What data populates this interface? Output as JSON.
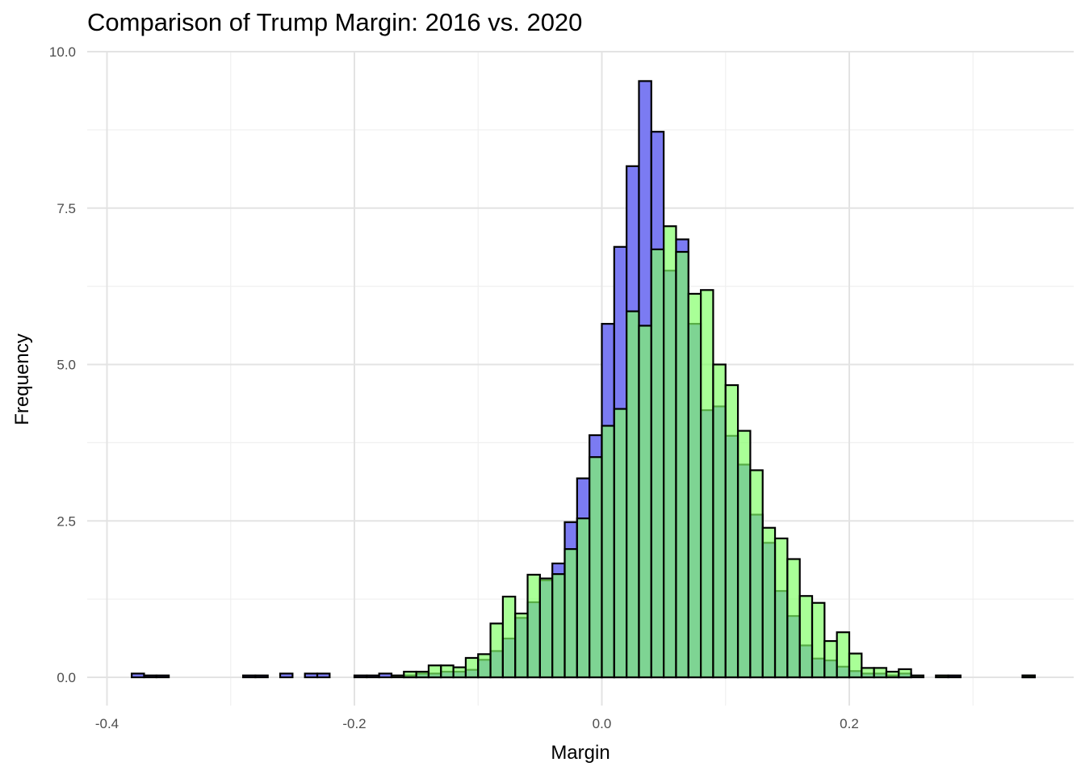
{
  "chart_data": {
    "type": "bar",
    "title": "Comparison of Trump Margin: 2016 vs. 2020",
    "xlabel": "Margin",
    "ylabel": "Frequency",
    "xlim": [
      -0.4,
      0.35
    ],
    "ylim": [
      0,
      10
    ],
    "x_ticks": [
      "-0.4",
      "-0.2",
      "0.0",
      "0.2"
    ],
    "x_tick_values": [
      -0.4,
      -0.2,
      0.0,
      0.2
    ],
    "y_ticks": [
      "0.0",
      "2.5",
      "5.0",
      "7.5",
      "10.0"
    ],
    "y_tick_values": [
      0,
      2.5,
      5.0,
      7.5,
      10.0
    ],
    "bin_width": 0.01,
    "grid": true,
    "legend": "none",
    "series": [
      {
        "color": "#7b7bf2",
        "bins": [
          {
            "x": -0.375,
            "y": 0.06
          },
          {
            "x": -0.365,
            "y": 0.03
          },
          {
            "x": -0.355,
            "y": 0.03
          },
          {
            "x": -0.285,
            "y": 0.03
          },
          {
            "x": -0.275,
            "y": 0.03
          },
          {
            "x": -0.255,
            "y": 0.06
          },
          {
            "x": -0.235,
            "y": 0.06
          },
          {
            "x": -0.225,
            "y": 0.06
          },
          {
            "x": -0.195,
            "y": 0.03
          },
          {
            "x": -0.185,
            "y": 0.03
          },
          {
            "x": -0.175,
            "y": 0.06
          },
          {
            "x": -0.155,
            "y": 0.03
          },
          {
            "x": -0.145,
            "y": 0.06
          },
          {
            "x": -0.135,
            "y": 0.06
          },
          {
            "x": -0.125,
            "y": 0.09
          },
          {
            "x": -0.115,
            "y": 0.09
          },
          {
            "x": -0.105,
            "y": 0.12
          },
          {
            "x": -0.095,
            "y": 0.28
          },
          {
            "x": -0.085,
            "y": 0.42
          },
          {
            "x": -0.075,
            "y": 0.62
          },
          {
            "x": -0.065,
            "y": 0.95
          },
          {
            "x": -0.055,
            "y": 1.2
          },
          {
            "x": -0.045,
            "y": 1.55
          },
          {
            "x": -0.035,
            "y": 1.82
          },
          {
            "x": -0.025,
            "y": 2.48
          },
          {
            "x": -0.015,
            "y": 3.18
          },
          {
            "x": -0.005,
            "y": 3.87
          },
          {
            "x": 0.005,
            "y": 5.65
          },
          {
            "x": 0.015,
            "y": 6.88
          },
          {
            "x": 0.025,
            "y": 8.17
          },
          {
            "x": 0.035,
            "y": 9.53
          },
          {
            "x": 0.045,
            "y": 8.72
          },
          {
            "x": 0.055,
            "y": 6.5
          },
          {
            "x": 0.065,
            "y": 7.0
          },
          {
            "x": 0.075,
            "y": 5.65
          },
          {
            "x": 0.085,
            "y": 4.27
          },
          {
            "x": 0.095,
            "y": 4.33
          },
          {
            "x": 0.105,
            "y": 3.86
          },
          {
            "x": 0.115,
            "y": 3.4
          },
          {
            "x": 0.125,
            "y": 2.6
          },
          {
            "x": 0.135,
            "y": 2.15
          },
          {
            "x": 0.145,
            "y": 1.38
          },
          {
            "x": 0.155,
            "y": 0.98
          },
          {
            "x": 0.165,
            "y": 0.51
          },
          {
            "x": 0.175,
            "y": 0.3
          },
          {
            "x": 0.185,
            "y": 0.27
          },
          {
            "x": 0.195,
            "y": 0.17
          },
          {
            "x": 0.205,
            "y": 0.1
          },
          {
            "x": 0.215,
            "y": 0.06
          },
          {
            "x": 0.225,
            "y": 0.06
          },
          {
            "x": 0.235,
            "y": 0.03
          },
          {
            "x": 0.245,
            "y": 0.06
          },
          {
            "x": 0.285,
            "y": 0.03
          },
          {
            "x": 0.345,
            "y": 0.03
          }
        ]
      },
      {
        "color": "#80ff66",
        "bins": [
          {
            "x": -0.165,
            "y": 0.03
          },
          {
            "x": -0.155,
            "y": 0.09
          },
          {
            "x": -0.145,
            "y": 0.09
          },
          {
            "x": -0.135,
            "y": 0.19
          },
          {
            "x": -0.125,
            "y": 0.19
          },
          {
            "x": -0.115,
            "y": 0.16
          },
          {
            "x": -0.105,
            "y": 0.31
          },
          {
            "x": -0.095,
            "y": 0.37
          },
          {
            "x": -0.085,
            "y": 0.86
          },
          {
            "x": -0.075,
            "y": 1.29
          },
          {
            "x": -0.065,
            "y": 1.02
          },
          {
            "x": -0.055,
            "y": 1.64
          },
          {
            "x": -0.045,
            "y": 1.58
          },
          {
            "x": -0.035,
            "y": 1.65
          },
          {
            "x": -0.025,
            "y": 2.05
          },
          {
            "x": -0.015,
            "y": 2.54
          },
          {
            "x": -0.005,
            "y": 3.52
          },
          {
            "x": 0.005,
            "y": 4.02
          },
          {
            "x": 0.015,
            "y": 4.29
          },
          {
            "x": 0.025,
            "y": 5.85
          },
          {
            "x": 0.035,
            "y": 5.62
          },
          {
            "x": 0.045,
            "y": 6.84
          },
          {
            "x": 0.055,
            "y": 7.21
          },
          {
            "x": 0.065,
            "y": 6.8
          },
          {
            "x": 0.075,
            "y": 6.13
          },
          {
            "x": 0.085,
            "y": 6.19
          },
          {
            "x": 0.095,
            "y": 5.0
          },
          {
            "x": 0.105,
            "y": 4.67
          },
          {
            "x": 0.115,
            "y": 3.94
          },
          {
            "x": 0.125,
            "y": 3.31
          },
          {
            "x": 0.135,
            "y": 2.39
          },
          {
            "x": 0.145,
            "y": 2.22
          },
          {
            "x": 0.155,
            "y": 1.89
          },
          {
            "x": 0.165,
            "y": 1.3
          },
          {
            "x": 0.175,
            "y": 1.19
          },
          {
            "x": 0.185,
            "y": 0.58
          },
          {
            "x": 0.195,
            "y": 0.72
          },
          {
            "x": 0.205,
            "y": 0.38
          },
          {
            "x": 0.215,
            "y": 0.15
          },
          {
            "x": 0.225,
            "y": 0.15
          },
          {
            "x": 0.235,
            "y": 0.09
          },
          {
            "x": 0.245,
            "y": 0.13
          },
          {
            "x": 0.255,
            "y": 0.03
          },
          {
            "x": 0.275,
            "y": 0.03
          },
          {
            "x": 0.345,
            "y": 0.03
          }
        ]
      }
    ]
  }
}
